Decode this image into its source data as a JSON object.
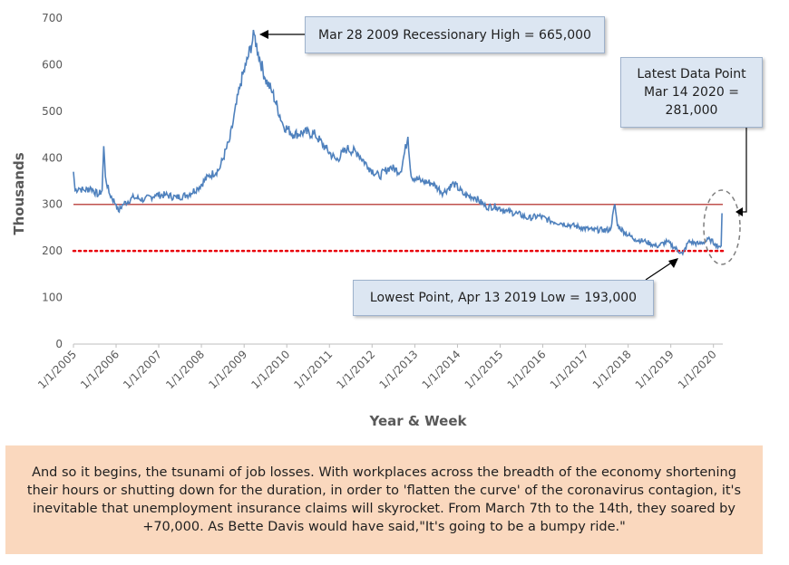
{
  "chart_data": {
    "type": "line",
    "title": "",
    "xlabel": "Year & Week",
    "ylabel": "Thousands",
    "ylim": [
      0,
      700
    ],
    "yticks": [
      0,
      100,
      200,
      300,
      400,
      500,
      600,
      700
    ],
    "xlim": [
      "2005-01-01",
      "2020-03-21"
    ],
    "xticks": [
      "1/1/2005",
      "1/1/2006",
      "1/1/2007",
      "1/1/2008",
      "1/1/2009",
      "1/1/2010",
      "1/1/2011",
      "1/1/2012",
      "1/1/2013",
      "1/1/2014",
      "1/1/2015",
      "1/1/2016",
      "1/1/2017",
      "1/1/2018",
      "1/1/2019",
      "1/1/2020"
    ],
    "grid": false,
    "series": [
      {
        "color": "#4f81bd",
        "points": [
          [
            "2005-01-01",
            370
          ],
          [
            "2005-01-15",
            330
          ],
          [
            "2005-02-15",
            335
          ],
          [
            "2005-04-01",
            330
          ],
          [
            "2005-06-01",
            335
          ],
          [
            "2005-08-01",
            320
          ],
          [
            "2005-09-03",
            330
          ],
          [
            "2005-09-17",
            425
          ],
          [
            "2005-10-01",
            360
          ],
          [
            "2005-11-01",
            325
          ],
          [
            "2006-01-01",
            300
          ],
          [
            "2006-01-21",
            285
          ],
          [
            "2006-03-01",
            300
          ],
          [
            "2006-06-01",
            315
          ],
          [
            "2006-09-01",
            310
          ],
          [
            "2006-12-01",
            320
          ],
          [
            "2007-03-01",
            320
          ],
          [
            "2007-06-01",
            315
          ],
          [
            "2007-09-01",
            320
          ],
          [
            "2007-12-01",
            335
          ],
          [
            "2008-03-01",
            360
          ],
          [
            "2008-06-01",
            375
          ],
          [
            "2008-09-01",
            440
          ],
          [
            "2008-12-01",
            560
          ],
          [
            "2009-01-17",
            600
          ],
          [
            "2009-03-28",
            665
          ],
          [
            "2009-05-01",
            625
          ],
          [
            "2009-07-01",
            570
          ],
          [
            "2009-09-01",
            540
          ],
          [
            "2009-12-01",
            470
          ],
          [
            "2010-03-01",
            450
          ],
          [
            "2010-06-01",
            455
          ],
          [
            "2010-09-01",
            450
          ],
          [
            "2010-12-01",
            420
          ],
          [
            "2011-03-01",
            395
          ],
          [
            "2011-06-01",
            420
          ],
          [
            "2011-09-01",
            410
          ],
          [
            "2011-12-01",
            380
          ],
          [
            "2012-03-01",
            360
          ],
          [
            "2012-06-01",
            380
          ],
          [
            "2012-09-01",
            370
          ],
          [
            "2012-11-03",
            445
          ],
          [
            "2012-12-01",
            360
          ],
          [
            "2013-03-01",
            350
          ],
          [
            "2013-06-01",
            345
          ],
          [
            "2013-09-01",
            325
          ],
          [
            "2013-12-01",
            345
          ],
          [
            "2014-03-01",
            320
          ],
          [
            "2014-06-01",
            315
          ],
          [
            "2014-09-01",
            295
          ],
          [
            "2014-12-01",
            295
          ],
          [
            "2015-03-01",
            285
          ],
          [
            "2015-06-01",
            280
          ],
          [
            "2015-09-01",
            270
          ],
          [
            "2015-12-01",
            275
          ],
          [
            "2016-03-01",
            265
          ],
          [
            "2016-06-01",
            260
          ],
          [
            "2016-09-01",
            255
          ],
          [
            "2016-12-01",
            250
          ],
          [
            "2017-03-01",
            245
          ],
          [
            "2017-06-01",
            245
          ],
          [
            "2017-08-01",
            245
          ],
          [
            "2017-09-09",
            300
          ],
          [
            "2017-10-01",
            255
          ],
          [
            "2017-12-01",
            240
          ],
          [
            "2018-03-01",
            225
          ],
          [
            "2018-06-01",
            220
          ],
          [
            "2018-09-01",
            210
          ],
          [
            "2018-12-01",
            220
          ],
          [
            "2019-04-13",
            193
          ],
          [
            "2019-06-01",
            220
          ],
          [
            "2019-09-01",
            215
          ],
          [
            "2019-12-01",
            225
          ],
          [
            "2020-01-15",
            215
          ],
          [
            "2020-02-15",
            210
          ],
          [
            "2020-03-07",
            211
          ],
          [
            "2020-03-14",
            281
          ]
        ]
      }
    ],
    "reference_lines": [
      {
        "y": 300,
        "color": "#c0504d",
        "style": "solid"
      },
      {
        "y": 200,
        "color": "#e8000b",
        "style": "dotted"
      }
    ],
    "annotations": {
      "high": "Mar 28 2009 Recessionary High = 665,000",
      "latest": "Latest Data Point Mar 14 2020 = 281,000",
      "low": "Lowest Point, Apr 13 2019 Low = 193,000"
    }
  },
  "commentary": "And so it begins, the tsunami of job losses. With workplaces across the breadth of the economy shortening their hours or shutting down for the duration, in order to 'flatten the curve' of the coronavirus contagion, it's inevitable that unemployment insurance claims will skyrocket. From March 7th to the 14th, they soared by +70,000. As Bette Davis would have said,\"It's going to be a bumpy ride.\""
}
